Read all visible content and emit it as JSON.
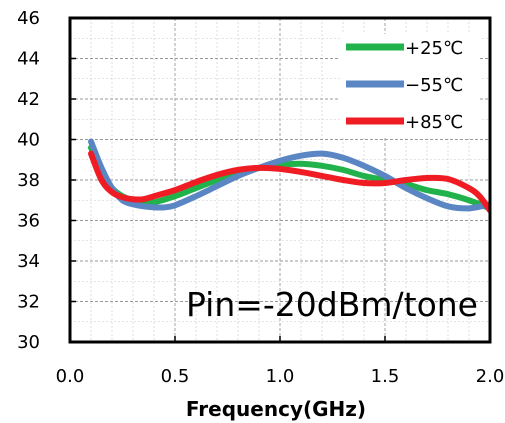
{
  "chart_data": {
    "type": "line",
    "title": "",
    "xlabel": "Frequency(GHz)",
    "ylabel": "",
    "xlim": [
      0.0,
      2.0
    ],
    "ylim": [
      30,
      46
    ],
    "x_ticks": [
      "0.0",
      "0.5",
      "1.0",
      "1.5",
      "2.0"
    ],
    "y_ticks": [
      "30",
      "32",
      "34",
      "36",
      "38",
      "40",
      "42",
      "44",
      "46"
    ],
    "grid": true,
    "legend_position": "top-right",
    "annotation": "Pin=-20dBm/tone",
    "series": [
      {
        "name": "+25℃",
        "color": "#21b24b",
        "x": [
          0.1,
          0.15,
          0.2,
          0.25,
          0.3,
          0.35,
          0.4,
          0.5,
          0.6,
          0.7,
          0.8,
          0.9,
          1.0,
          1.1,
          1.2,
          1.3,
          1.4,
          1.5,
          1.6,
          1.7,
          1.8,
          1.9,
          2.0
        ],
        "y": [
          39.6,
          38.4,
          37.6,
          37.2,
          37.0,
          36.9,
          36.9,
          37.2,
          37.6,
          38.0,
          38.3,
          38.6,
          38.75,
          38.8,
          38.7,
          38.5,
          38.2,
          38.0,
          37.8,
          37.5,
          37.3,
          37.0,
          36.6
        ]
      },
      {
        "name": "−55℃",
        "color": "#5a86c3",
        "x": [
          0.1,
          0.15,
          0.2,
          0.25,
          0.3,
          0.35,
          0.4,
          0.45,
          0.5,
          0.6,
          0.7,
          0.8,
          0.9,
          1.0,
          1.1,
          1.2,
          1.3,
          1.4,
          1.5,
          1.6,
          1.7,
          1.8,
          1.9,
          2.0
        ],
        "y": [
          39.9,
          38.6,
          37.6,
          37.0,
          36.8,
          36.7,
          36.65,
          36.65,
          36.75,
          37.2,
          37.7,
          38.2,
          38.6,
          38.95,
          39.2,
          39.3,
          39.1,
          38.7,
          38.2,
          37.6,
          37.1,
          36.7,
          36.6,
          36.8
        ]
      },
      {
        "name": "+85℃",
        "color": "#ef1c24",
        "x": [
          0.1,
          0.15,
          0.2,
          0.25,
          0.3,
          0.35,
          0.4,
          0.5,
          0.6,
          0.7,
          0.8,
          0.9,
          1.0,
          1.1,
          1.2,
          1.3,
          1.4,
          1.5,
          1.6,
          1.7,
          1.8,
          1.9,
          1.95,
          2.0
        ],
        "y": [
          39.3,
          38.0,
          37.4,
          37.15,
          37.05,
          37.05,
          37.2,
          37.5,
          37.9,
          38.25,
          38.5,
          38.6,
          38.55,
          38.4,
          38.2,
          38.0,
          37.85,
          37.85,
          38.0,
          38.1,
          38.05,
          37.6,
          37.2,
          36.5
        ]
      }
    ]
  }
}
